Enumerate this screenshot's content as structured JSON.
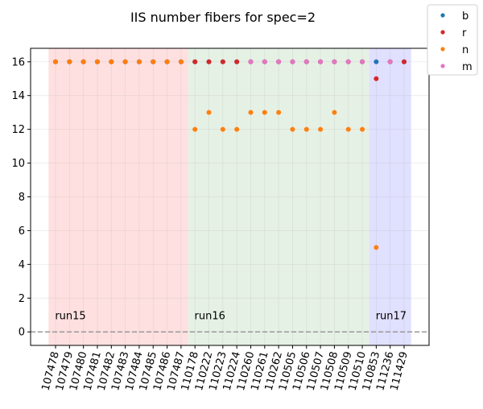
{
  "chart_data": {
    "type": "scatter",
    "title": "IIS number fibers for spec=2",
    "xlabel": "",
    "ylabel": "",
    "ylim": [
      -0.8,
      16.8
    ],
    "yticks": [
      0,
      2,
      4,
      6,
      8,
      10,
      12,
      14,
      16
    ],
    "grid": true,
    "legend_placement": "top-right outside",
    "categories": [
      "107478",
      "107479",
      "107480",
      "107481",
      "107482",
      "107483",
      "107484",
      "107485",
      "107486",
      "107487",
      "110178",
      "110222",
      "110223",
      "110224",
      "110260",
      "110261",
      "110262",
      "110505",
      "110506",
      "110507",
      "110508",
      "110509",
      "110510",
      "110853",
      "111236",
      "111429"
    ],
    "series": [
      {
        "name": "b",
        "color": "#1f77b4",
        "values": [
          16,
          16,
          16,
          16,
          16,
          16,
          16,
          16,
          16,
          16,
          16,
          16,
          16,
          16,
          16,
          16,
          16,
          16,
          16,
          16,
          16,
          16,
          16,
          16,
          16,
          16
        ]
      },
      {
        "name": "r",
        "color": "#d62728",
        "values": [
          16,
          16,
          16,
          16,
          16,
          16,
          16,
          16,
          16,
          16,
          16,
          16,
          16,
          16,
          16,
          16,
          16,
          16,
          16,
          16,
          16,
          16,
          16,
          15,
          16,
          16
        ]
      },
      {
        "name": "n",
        "color": "#ff7f0e",
        "values": [
          16,
          16,
          16,
          16,
          16,
          16,
          16,
          16,
          16,
          16,
          12,
          13,
          12,
          12,
          13,
          13,
          13,
          12,
          12,
          12,
          13,
          12,
          12,
          5,
          null,
          null
        ]
      },
      {
        "name": "m",
        "color": "#e377c2",
        "values": [
          null,
          null,
          null,
          null,
          null,
          null,
          null,
          null,
          null,
          null,
          null,
          null,
          null,
          null,
          16,
          16,
          16,
          16,
          16,
          16,
          16,
          16,
          16,
          null,
          16,
          null
        ]
      }
    ],
    "runs": [
      {
        "label": "run15",
        "start_index": 0,
        "end_index": 9,
        "color": "#ffcccc"
      },
      {
        "label": "run16",
        "start_index": 10,
        "end_index": 22,
        "color": "#d5e8d4"
      },
      {
        "label": "run17",
        "start_index": 23,
        "end_index": 25,
        "color": "#ccccff"
      }
    ],
    "reference_line": {
      "y": 0,
      "style": "dashed",
      "color": "#999999"
    }
  }
}
